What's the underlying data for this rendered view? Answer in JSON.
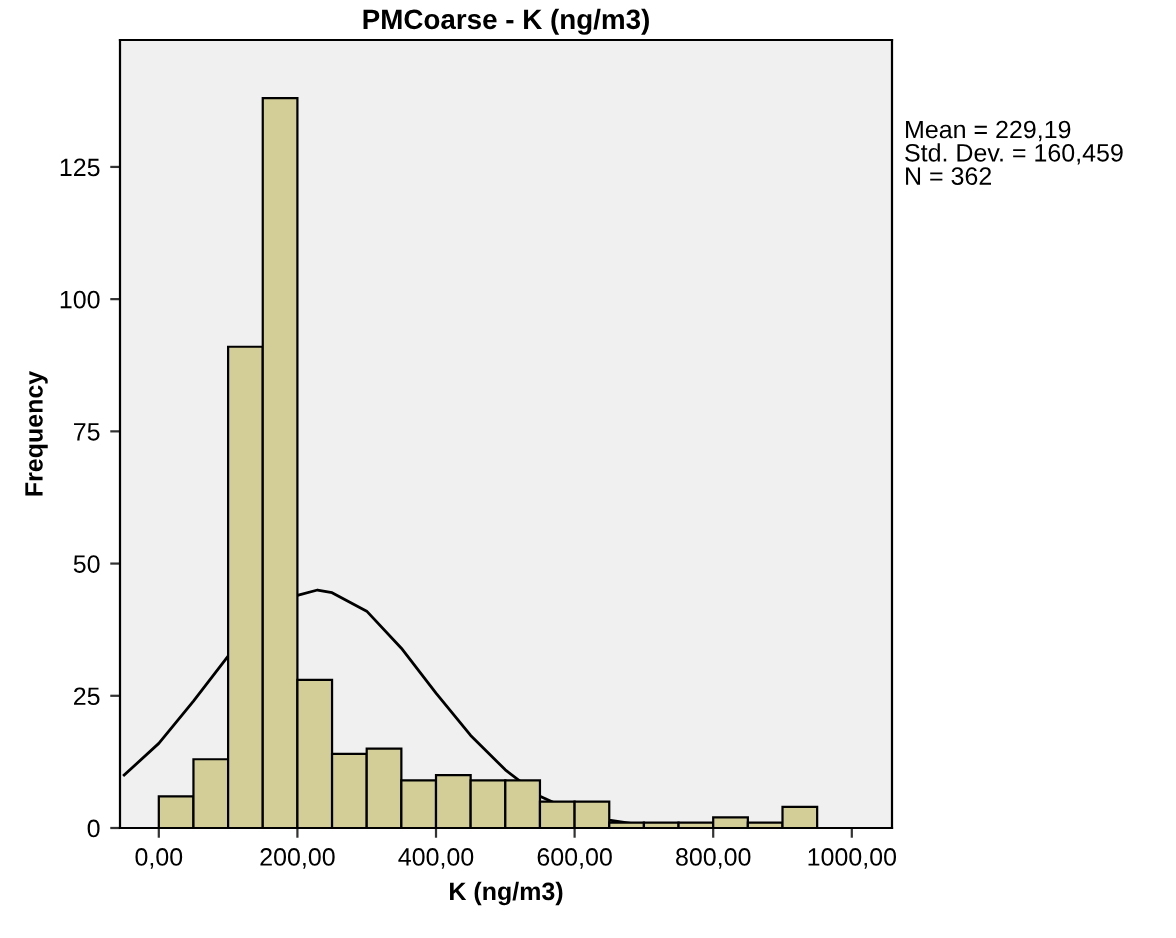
{
  "chart_data": {
    "type": "histogram",
    "title": "PMCoarse - K (ng/m3)",
    "xlabel": "K (ng/m3)",
    "ylabel": "Frequency",
    "bins": [
      0,
      50,
      100,
      150,
      200,
      250,
      300,
      350,
      400,
      450,
      500,
      550,
      600,
      650,
      700,
      750,
      800,
      850,
      900,
      950
    ],
    "values": [
      6,
      13,
      91,
      138,
      28,
      14,
      15,
      9,
      10,
      9,
      9,
      5,
      5,
      1,
      1,
      1,
      2,
      1,
      4
    ],
    "color": "#d3ce98",
    "series": [
      {
        "type": "line",
        "color": "#000000",
        "x": [
          -50,
          0,
          50,
          100,
          150,
          200,
          229,
          250,
          300,
          350,
          400,
          450,
          500,
          550,
          600,
          650,
          700,
          750,
          800
        ],
        "values": [
          10,
          16,
          24,
          32.5,
          40,
          44,
          45,
          44.5,
          41,
          34,
          25.5,
          17.5,
          11,
          6,
          3,
          1.5,
          0.5,
          0,
          0
        ]
      }
    ],
    "xlim": [
      -56,
      1058
    ],
    "ylim": [
      0,
      149
    ],
    "xticks": [
      {
        "value": 0,
        "label": "0,00"
      },
      {
        "value": 200,
        "label": "200,00"
      },
      {
        "value": 400,
        "label": "400,00"
      },
      {
        "value": 600,
        "label": "600,00"
      },
      {
        "value": 800,
        "label": "800,00"
      },
      {
        "value": 1000,
        "label": "1000,00"
      }
    ],
    "yticks": [
      0,
      25,
      50,
      75,
      100,
      125
    ],
    "grid": false,
    "legend": false,
    "annotations": [
      "Mean = 229,19",
      "Std. Dev. = 160,459",
      "N = 362"
    ]
  }
}
